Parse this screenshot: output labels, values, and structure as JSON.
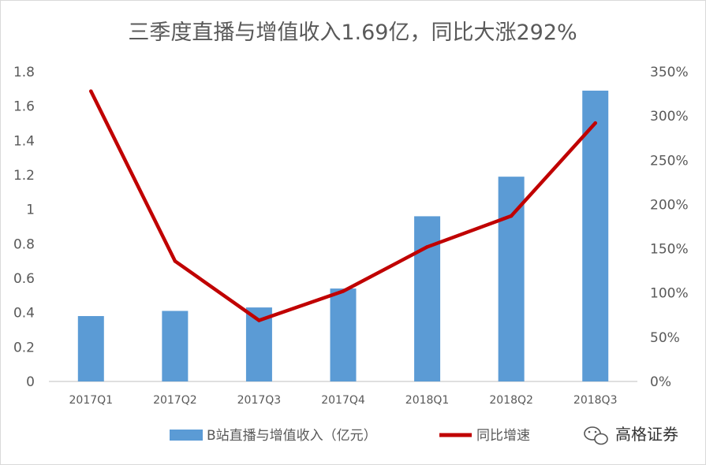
{
  "chart_data": {
    "type": "bar",
    "title": "三季度直播与增值收入1.69亿，同比大涨292%",
    "categories": [
      "2017Q1",
      "2017Q2",
      "2017Q3",
      "2017Q4",
      "2018Q1",
      "2018Q2",
      "2018Q3"
    ],
    "series": [
      {
        "name": "B站直播与增值收入（亿元）",
        "type": "bar",
        "axis": "left",
        "color": "#5B9BD5",
        "values": [
          0.38,
          0.41,
          0.43,
          0.54,
          0.96,
          1.19,
          1.69
        ]
      },
      {
        "name": "同比增速",
        "type": "line",
        "axis": "right",
        "color": "#C00000",
        "values": [
          328,
          136,
          69,
          102,
          152,
          187,
          292
        ]
      }
    ],
    "y_left": {
      "ylim": [
        0,
        1.8
      ],
      "ticks": [
        "0",
        "0.2",
        "0.4",
        "0.6",
        "0.8",
        "1",
        "1.2",
        "1.4",
        "1.6",
        "1.8"
      ]
    },
    "y_right": {
      "ylim": [
        0,
        350
      ],
      "ticks": [
        "0%",
        "50%",
        "100%",
        "150%",
        "200%",
        "250%",
        "300%",
        "350%"
      ]
    },
    "grid": false,
    "legend_position": "bottom"
  },
  "watermark": {
    "text": "高格证券",
    "icon": "wechat-icon"
  }
}
